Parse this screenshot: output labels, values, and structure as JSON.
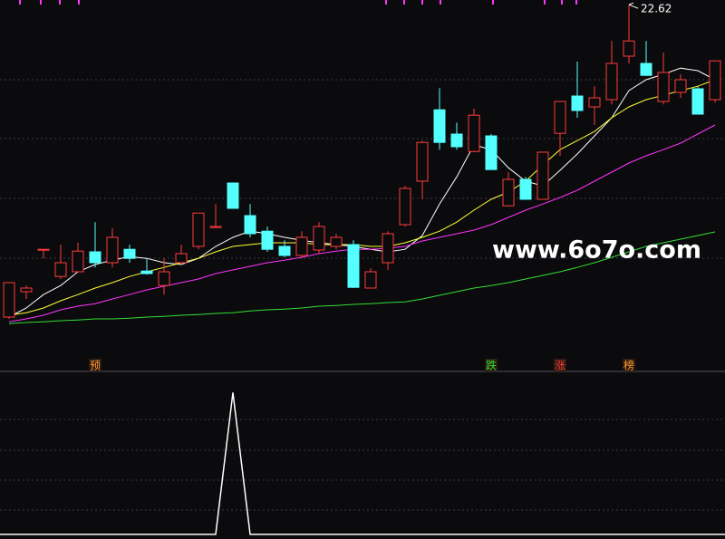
{
  "chart_data": [
    {
      "type": "candlestick",
      "open": [
        14.0,
        14.7,
        15.87,
        15.12,
        15.25,
        15.8,
        15.5,
        15.87,
        15.27,
        14.87,
        15.5,
        15.95,
        16.47,
        17.7,
        16.8,
        16.37,
        15.95,
        15.7,
        15.85,
        15.95,
        16.0,
        14.8,
        15.5,
        16.55,
        17.75,
        19.72,
        19.05,
        18.57,
        19.0,
        17.07,
        17.8,
        17.25,
        19.07,
        20.1,
        19.8,
        20.0,
        21.2,
        21.0,
        19.95,
        20.2,
        20.3,
        20.0
      ],
      "high": [
        14.95,
        14.87,
        15.87,
        16.0,
        16.05,
        16.62,
        16.45,
        16.0,
        15.62,
        15.62,
        16.0,
        16.87,
        17.12,
        17.7,
        17.12,
        16.5,
        16.12,
        16.37,
        16.62,
        16.3,
        16.12,
        15.35,
        16.37,
        17.62,
        18.87,
        20.32,
        19.37,
        19.75,
        19.05,
        18.0,
        17.87,
        18.55,
        19.95,
        21.05,
        20.37,
        21.62,
        22.62,
        21.62,
        21.3,
        20.7,
        20.37,
        21.07
      ],
      "low": [
        13.95,
        14.5,
        15.62,
        15.05,
        15.25,
        15.37,
        15.37,
        15.5,
        15.17,
        14.62,
        15.45,
        15.87,
        16.45,
        17.0,
        16.2,
        15.8,
        15.65,
        15.62,
        15.75,
        15.87,
        14.8,
        14.8,
        15.3,
        16.5,
        17.25,
        18.62,
        18.62,
        18.55,
        18.07,
        17.05,
        17.25,
        17.25,
        18.45,
        19.5,
        19.3,
        19.87,
        21.0,
        20.65,
        19.87,
        20.05,
        19.6,
        19.92
      ],
      "close": [
        14.95,
        14.8,
        15.87,
        15.5,
        15.82,
        15.5,
        16.2,
        15.62,
        15.2,
        15.25,
        15.75,
        16.87,
        16.5,
        17.0,
        16.3,
        15.87,
        15.7,
        16.2,
        16.5,
        16.2,
        14.82,
        15.25,
        16.3,
        17.55,
        18.82,
        18.82,
        18.7,
        19.57,
        18.07,
        17.8,
        17.25,
        18.55,
        19.95,
        19.7,
        20.05,
        21.0,
        21.62,
        20.67,
        20.75,
        20.55,
        19.6,
        21.07
      ],
      "up_color": "#ff3b3b",
      "down_color": "#54ffff",
      "series": [
        {
          "color": "#ffffff",
          "values": [
            14.0,
            14.25,
            14.62,
            14.87,
            15.25,
            15.45,
            15.57,
            15.67,
            15.62,
            15.5,
            15.45,
            15.62,
            15.95,
            16.2,
            16.37,
            16.3,
            16.2,
            16.12,
            16.05,
            16.0,
            15.95,
            15.87,
            15.8,
            15.87,
            16.25,
            17.12,
            17.87,
            18.75,
            18.62,
            18.12,
            17.75,
            17.62,
            18.05,
            18.5,
            19.0,
            19.5,
            20.25,
            20.55,
            20.7,
            20.87,
            20.8,
            20.55
          ]
        },
        {
          "color": "#ffff33",
          "values": [
            14.05,
            14.12,
            14.25,
            14.45,
            14.62,
            14.8,
            14.95,
            15.12,
            15.25,
            15.37,
            15.5,
            15.62,
            15.8,
            15.95,
            16.0,
            16.05,
            16.05,
            16.05,
            16.0,
            16.0,
            16.0,
            15.95,
            15.95,
            16.05,
            16.2,
            16.37,
            16.62,
            16.95,
            17.25,
            17.45,
            17.75,
            18.2,
            18.62,
            18.87,
            19.12,
            19.5,
            19.8,
            20.0,
            20.12,
            20.25,
            20.37,
            20.55
          ]
        },
        {
          "color": "#ff33ff",
          "values": [
            13.87,
            13.95,
            14.05,
            14.2,
            14.3,
            14.37,
            14.5,
            14.62,
            14.75,
            14.85,
            14.95,
            15.05,
            15.2,
            15.3,
            15.4,
            15.5,
            15.57,
            15.65,
            15.75,
            15.82,
            15.87,
            15.87,
            15.9,
            15.95,
            16.1,
            16.2,
            16.3,
            16.4,
            16.55,
            16.75,
            16.95,
            17.12,
            17.3,
            17.5,
            17.75,
            18.0,
            18.25,
            18.45,
            18.62,
            18.8,
            19.05,
            19.3
          ]
        },
        {
          "color": "#33dd33",
          "values": [
            13.82,
            13.85,
            13.87,
            13.9,
            13.92,
            13.95,
            13.95,
            13.97,
            14.0,
            14.02,
            14.05,
            14.07,
            14.1,
            14.12,
            14.17,
            14.2,
            14.22,
            14.25,
            14.3,
            14.32,
            14.35,
            14.37,
            14.4,
            14.42,
            14.5,
            14.6,
            14.7,
            14.8,
            14.87,
            14.95,
            15.05,
            15.15,
            15.25,
            15.37,
            15.5,
            15.65,
            15.8,
            15.95,
            16.05,
            16.15,
            16.25,
            16.35
          ]
        }
      ],
      "signals": [
        null,
        null,
        null,
        null,
        null,
        "预",
        null,
        null,
        null,
        null,
        null,
        null,
        null,
        null,
        null,
        null,
        null,
        null,
        null,
        null,
        null,
        null,
        null,
        null,
        null,
        null,
        null,
        null,
        "跌",
        null,
        null,
        null,
        "涨",
        null,
        null,
        null,
        "榜",
        null,
        null,
        null,
        null,
        null
      ],
      "annotation": "22.62",
      "watermark": "www.6o7o.com",
      "ylim": [
        12.5,
        22.75
      ]
    },
    {
      "type": "line",
      "color": "#ffffff",
      "values": [
        0,
        0,
        0,
        0,
        0,
        0,
        0,
        0,
        0,
        0,
        0,
        0,
        0,
        1,
        0,
        0,
        0,
        0,
        0,
        0,
        0,
        0,
        0,
        0,
        0,
        0,
        0,
        0,
        0,
        0,
        0,
        0,
        0,
        0,
        0,
        0,
        0,
        0,
        0,
        0,
        0,
        0
      ],
      "ylim": [
        -0.02,
        1.13
      ]
    }
  ]
}
